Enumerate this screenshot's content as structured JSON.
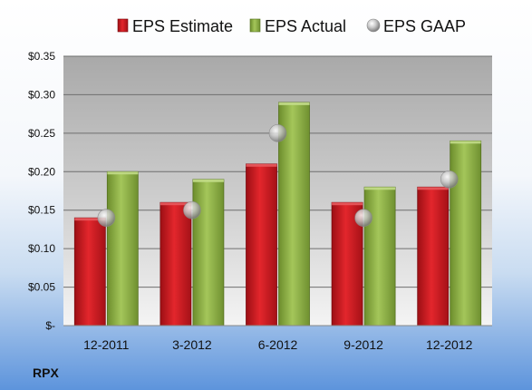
{
  "ticker": "RPX",
  "chart_data": {
    "type": "bar",
    "categories": [
      "12-2011",
      "3-2012",
      "6-2012",
      "9-2012",
      "12-2012"
    ],
    "series": [
      {
        "name": "EPS Estimate",
        "kind": "bar",
        "color": "#c8161d",
        "values": [
          0.14,
          0.16,
          0.21,
          0.16,
          0.18
        ]
      },
      {
        "name": "EPS Actual",
        "kind": "bar",
        "color": "#8aaf3f",
        "values": [
          0.2,
          0.19,
          0.29,
          0.18,
          0.24
        ]
      },
      {
        "name": "EPS GAAP",
        "kind": "marker",
        "color": "#a8a8a8",
        "values": [
          0.14,
          0.15,
          0.25,
          0.14,
          0.19
        ]
      }
    ],
    "ylim": [
      0,
      0.35
    ],
    "yticks": [
      0,
      0.05,
      0.1,
      0.15,
      0.2,
      0.25,
      0.3,
      0.35
    ],
    "ytick_labels": [
      "$-",
      "$0.05",
      "$0.10",
      "$0.15",
      "$0.20",
      "$0.25",
      "$0.30",
      "$0.35"
    ],
    "grid": true,
    "legend_position": "top"
  }
}
